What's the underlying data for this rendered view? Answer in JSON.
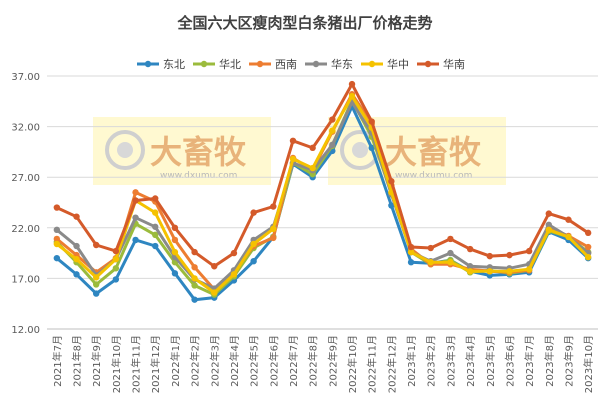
{
  "chart_data": {
    "type": "line",
    "title": "全国六大区瘦肉型白条猪出厂价格走势",
    "xlabel": "",
    "ylabel": "",
    "ylim": [
      12,
      37
    ],
    "yticks": [
      "12.00",
      "17.00",
      "22.00",
      "27.00",
      "32.00",
      "37.00"
    ],
    "grid": "horizontal",
    "legend_position": "top",
    "categories": [
      "2021年7月",
      "2021年8月",
      "2021年9月",
      "2021年10月",
      "2021年11月",
      "2021年12月",
      "2022年1月",
      "2022年2月",
      "2022年3月",
      "2022年4月",
      "2022年5月",
      "2022年6月",
      "2022年7月",
      "2022年8月",
      "2022年9月",
      "2022年10月",
      "2022年11月",
      "2022年12月",
      "2023年1月",
      "2023年2月",
      "2023年3月",
      "2023年4月",
      "2023年5月",
      "2023年6月",
      "2023年7月",
      "2023年8月",
      "2023年9月",
      "2023年10月"
    ],
    "series": [
      {
        "name": "东北",
        "color": "#2e86c1",
        "values": [
          19.0,
          17.4,
          15.5,
          16.9,
          20.8,
          20.2,
          17.5,
          14.9,
          15.1,
          16.8,
          18.7,
          21.1,
          28.3,
          27.0,
          29.6,
          34.0,
          29.9,
          24.2,
          18.6,
          18.5,
          18.8,
          17.7,
          17.3,
          17.4,
          17.6,
          21.6,
          20.8,
          19.0
        ]
      },
      {
        "name": "华北",
        "color": "#9bbb3c",
        "values": [
          20.6,
          18.6,
          16.4,
          18.0,
          22.4,
          21.3,
          18.6,
          16.3,
          15.4,
          17.2,
          20.0,
          21.1,
          28.4,
          27.3,
          30.1,
          34.6,
          31.0,
          25.5,
          19.6,
          18.4,
          18.8,
          17.6,
          17.8,
          17.5,
          17.8,
          21.7,
          21.1,
          19.6
        ]
      },
      {
        "name": "西南",
        "color": "#ed7d31",
        "values": [
          20.9,
          19.3,
          17.6,
          19.0,
          25.5,
          24.6,
          20.8,
          18.1,
          15.9,
          17.6,
          20.2,
          21.0,
          28.9,
          27.7,
          31.5,
          35.2,
          32.3,
          26.2,
          19.9,
          18.4,
          18.4,
          17.9,
          17.7,
          17.6,
          17.8,
          22.0,
          21.2,
          20.1
        ]
      },
      {
        "name": "华东",
        "color": "#8a8a8a",
        "values": [
          21.8,
          20.2,
          17.3,
          18.9,
          23.0,
          22.1,
          19.1,
          16.9,
          16.0,
          17.8,
          20.8,
          22.1,
          28.4,
          27.7,
          30.2,
          34.4,
          31.4,
          25.3,
          19.6,
          18.7,
          19.5,
          18.2,
          18.1,
          18.0,
          18.4,
          22.3,
          21.1,
          19.5
        ]
      },
      {
        "name": "华中",
        "color": "#f5c200",
        "values": [
          20.4,
          18.9,
          17.1,
          18.9,
          24.7,
          23.5,
          19.6,
          17.0,
          15.6,
          17.4,
          20.4,
          21.9,
          28.8,
          27.9,
          31.6,
          35.0,
          31.9,
          25.5,
          19.6,
          18.6,
          18.6,
          17.7,
          17.7,
          17.7,
          17.9,
          21.8,
          21.1,
          19.1
        ]
      },
      {
        "name": "华南",
        "color": "#d45a2a",
        "values": [
          24.0,
          23.1,
          20.3,
          19.7,
          24.7,
          24.9,
          22.0,
          19.6,
          18.2,
          19.5,
          23.5,
          24.1,
          30.6,
          29.9,
          32.7,
          36.2,
          32.5,
          26.6,
          20.1,
          20.0,
          20.9,
          19.9,
          19.2,
          19.3,
          19.7,
          23.4,
          22.8,
          21.5
        ]
      }
    ]
  },
  "watermark": {
    "brand": "大畜牧",
    "url": "www.dxumu.com"
  }
}
